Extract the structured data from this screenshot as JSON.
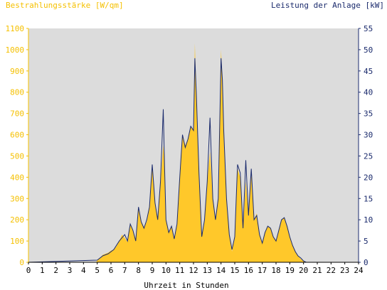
{
  "chart_data": {
    "type": "area",
    "y_left_label": "Bestrahlungsstärke [W/qm]",
    "y_right_label": "Leistung der Anlage [kW]",
    "xlabel": "Uhrzeit in Stunden",
    "xlim": [
      0,
      24
    ],
    "ylim_left": [
      0,
      1100
    ],
    "ylim_right": [
      0,
      55
    ],
    "x_ticks": [
      "0",
      "1",
      "2",
      "3",
      "4",
      "5",
      "6",
      "7",
      "8",
      "9",
      "10",
      "11",
      "12",
      "13",
      "14",
      "15",
      "16",
      "17",
      "18",
      "19",
      "20",
      "21",
      "22",
      "23",
      "24"
    ],
    "y_left_ticks": [
      "0",
      "100",
      "200",
      "300",
      "400",
      "500",
      "600",
      "700",
      "800",
      "900",
      "1000",
      "1100"
    ],
    "y_right_ticks": [
      "0",
      "5",
      "10",
      "15",
      "20",
      "25",
      "30",
      "35",
      "40",
      "45",
      "50",
      "55"
    ],
    "grid": false,
    "colors": {
      "irradiance": "#ffc82a",
      "power": "#1a2a6c",
      "plot_bg": "#dcdcdc",
      "left_axis": "#f5c000",
      "right_axis": "#1a2a6c"
    },
    "series": [
      {
        "name": "Bestrahlungsstärke",
        "axis": "left",
        "x": [
          0,
          4.9,
          5.0,
          5.2,
          5.4,
          5.6,
          5.8,
          6.0,
          6.2,
          6.4,
          6.6,
          6.8,
          7.0,
          7.2,
          7.4,
          7.6,
          7.8,
          8.0,
          8.2,
          8.4,
          8.6,
          8.8,
          9.0,
          9.2,
          9.4,
          9.6,
          9.8,
          9.9,
          10.0,
          10.2,
          10.4,
          10.6,
          10.8,
          11.0,
          11.2,
          11.4,
          11.6,
          11.8,
          12.0,
          12.1,
          12.2,
          12.4,
          12.6,
          12.8,
          13.0,
          13.2,
          13.4,
          13.6,
          13.8,
          14.0,
          14.1,
          14.2,
          14.4,
          14.6,
          14.8,
          15.0,
          15.2,
          15.4,
          15.6,
          15.8,
          16.0,
          16.2,
          16.4,
          16.6,
          16.8,
          17.0,
          17.2,
          17.4,
          17.6,
          17.8,
          18.0,
          18.2,
          18.4,
          18.6,
          18.8,
          19.0,
          19.2,
          19.4,
          19.6,
          19.8,
          20.0,
          20.2,
          24
        ],
        "y": [
          0,
          0,
          8,
          20,
          35,
          40,
          45,
          55,
          60,
          75,
          100,
          130,
          115,
          95,
          180,
          150,
          110,
          250,
          190,
          165,
          190,
          260,
          450,
          280,
          200,
          370,
          550,
          470,
          200,
          140,
          170,
          110,
          180,
          400,
          600,
          550,
          580,
          640,
          620,
          1030,
          800,
          420,
          120,
          200,
          380,
          520,
          300,
          200,
          300,
          1000,
          860,
          600,
          300,
          130,
          50,
          120,
          440,
          400,
          160,
          380,
          220,
          410,
          200,
          230,
          130,
          90,
          140,
          170,
          160,
          120,
          100,
          150,
          200,
          210,
          170,
          120,
          80,
          50,
          30,
          15,
          5,
          0,
          0
        ]
      },
      {
        "name": "Leistung der Anlage",
        "axis": "right",
        "x": [
          0,
          5.0,
          5.4,
          5.8,
          6.2,
          6.6,
          7.0,
          7.2,
          7.4,
          7.6,
          7.8,
          8.0,
          8.2,
          8.4,
          8.6,
          8.8,
          9.0,
          9.2,
          9.4,
          9.6,
          9.8,
          9.9,
          10.0,
          10.2,
          10.4,
          10.6,
          10.8,
          11.0,
          11.2,
          11.4,
          11.6,
          11.8,
          12.0,
          12.1,
          12.2,
          12.4,
          12.6,
          12.8,
          13.0,
          13.2,
          13.4,
          13.6,
          13.8,
          14.0,
          14.1,
          14.2,
          14.4,
          14.6,
          14.8,
          15.0,
          15.2,
          15.4,
          15.6,
          15.8,
          16.0,
          16.2,
          16.4,
          16.6,
          16.8,
          17.0,
          17.2,
          17.4,
          17.6,
          17.8,
          18.0,
          18.2,
          18.4,
          18.6,
          18.8,
          19.0,
          19.2,
          19.4,
          19.6,
          19.8,
          20.0,
          20.2,
          24
        ],
        "y": [
          0,
          0.5,
          1.5,
          2,
          3,
          5,
          6.5,
          5,
          9,
          7.5,
          5,
          13,
          9.5,
          8,
          10,
          13,
          23,
          14,
          10,
          19,
          36,
          22,
          10,
          7,
          8.5,
          5.5,
          9,
          20,
          30,
          27,
          29,
          32,
          31,
          48,
          40,
          21,
          6,
          10,
          19,
          34,
          15,
          10,
          15,
          48,
          43,
          31,
          15,
          6.5,
          3,
          6,
          23,
          21,
          8,
          24,
          11,
          22,
          10,
          11,
          6.5,
          4.5,
          7,
          8.5,
          8,
          6,
          5,
          7.5,
          10,
          10.5,
          8.5,
          6,
          4,
          2.5,
          1.5,
          1,
          0.3,
          0,
          0
        ]
      }
    ]
  }
}
